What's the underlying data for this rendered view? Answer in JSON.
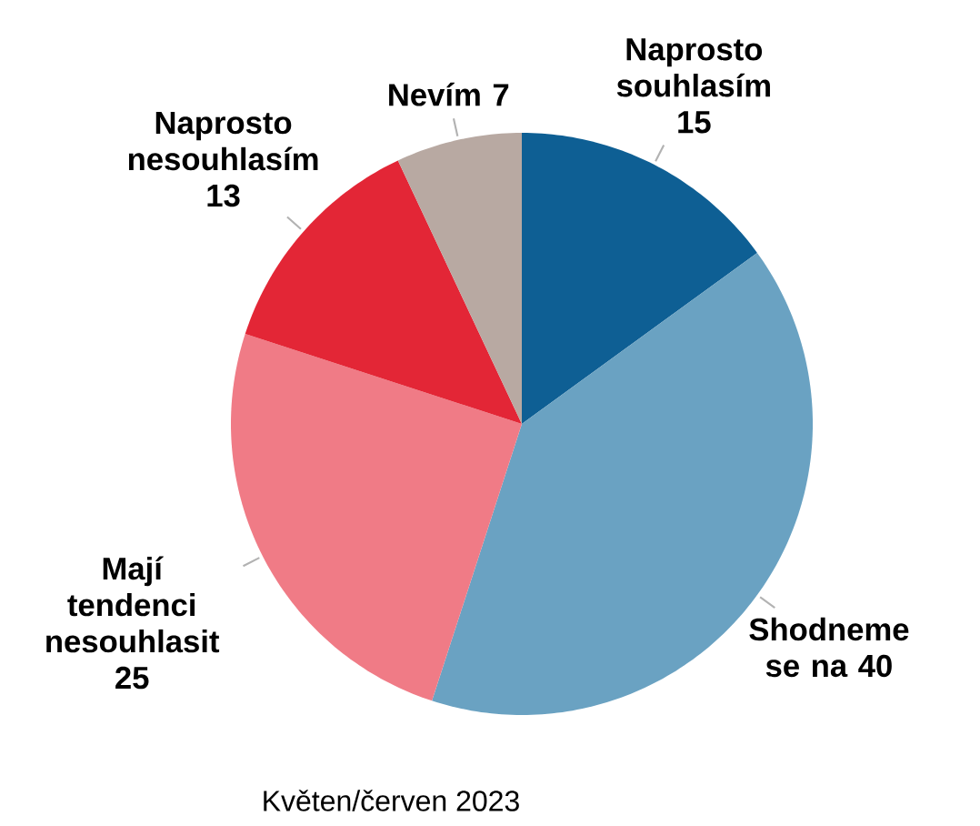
{
  "chart_data": {
    "type": "pie",
    "categories": [
      "Naprosto souhlasím",
      "Shodneme se na",
      "Mají tendenci nesouhlasit",
      "Naprosto nesouhlasím",
      "Nevím"
    ],
    "values": [
      15,
      40,
      25,
      13,
      7
    ],
    "value_labels": [
      "15",
      "40",
      "25",
      "13",
      "7"
    ],
    "colors": [
      "#0e5f94",
      "#6aa2c2",
      "#f07b86",
      "#e32636",
      "#b8a9a2"
    ],
    "annotations": [
      "Květen/červen 2023"
    ]
  }
}
